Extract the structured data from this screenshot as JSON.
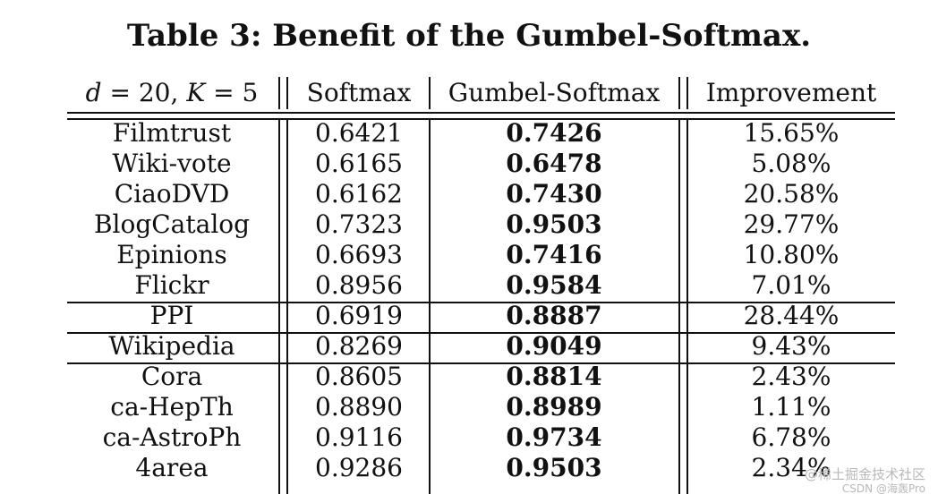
{
  "title": "Table 3: Benefit of the Gumbel-Softmax.",
  "header": {
    "setting_d": "d",
    "setting_mid": " = 20, ",
    "setting_k": "K",
    "setting_end": " = 5",
    "col_softmax": "Softmax",
    "col_gumbel": "Gumbel-Softmax",
    "col_improvement": "Improvement"
  },
  "rows": [
    {
      "dataset": "Filmtrust",
      "softmax": "0.6421",
      "gumbel": "0.7426",
      "improvement": "15.65%"
    },
    {
      "dataset": "Wiki-vote",
      "softmax": "0.6165",
      "gumbel": "0.6478",
      "improvement": "5.08%"
    },
    {
      "dataset": "CiaoDVD",
      "softmax": "0.6162",
      "gumbel": "0.7430",
      "improvement": "20.58%"
    },
    {
      "dataset": "BlogCatalog",
      "softmax": "0.7323",
      "gumbel": "0.9503",
      "improvement": "29.77%"
    },
    {
      "dataset": "Epinions",
      "softmax": "0.6693",
      "gumbel": "0.7416",
      "improvement": "10.80%"
    },
    {
      "dataset": "Flickr",
      "softmax": "0.8956",
      "gumbel": "0.9584",
      "improvement": "7.01%"
    },
    {
      "dataset": "PPI",
      "softmax": "0.6919",
      "gumbel": "0.8887",
      "improvement": "28.44%"
    },
    {
      "dataset": "Wikipedia",
      "softmax": "0.8269",
      "gumbel": "0.9049",
      "improvement": "9.43%"
    },
    {
      "dataset": "Cora",
      "softmax": "0.8605",
      "gumbel": "0.8814",
      "improvement": "2.43%"
    },
    {
      "dataset": "ca-HepTh",
      "softmax": "0.8890",
      "gumbel": "0.8989",
      "improvement": "1.11%"
    },
    {
      "dataset": "ca-AstroPh",
      "softmax": "0.9116",
      "gumbel": "0.9734",
      "improvement": "6.78%"
    },
    {
      "dataset": "4area",
      "softmax": "0.9286",
      "gumbel": "0.9503",
      "improvement": "2.34%"
    }
  ],
  "watermark": {
    "line1": "@稀土掘金技术社区",
    "line2": "CSDN @海轰Pro"
  }
}
